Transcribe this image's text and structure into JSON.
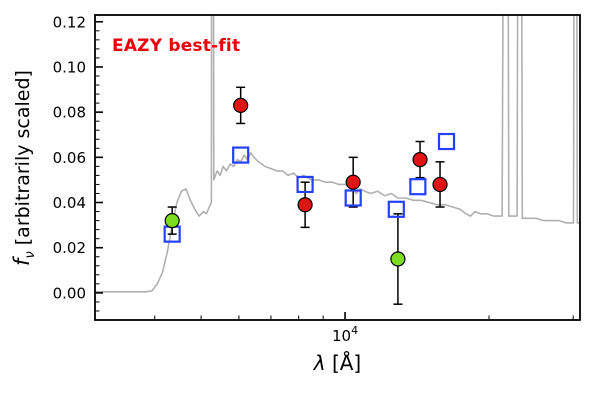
{
  "chart_data": {
    "type": "line+scatter",
    "annotation": "EAZY best-fit",
    "annotation_color": "#e8000b",
    "xlabel_symbol": "λ",
    "xlabel_rest": " [Å]",
    "ylabel_symbol": "f",
    "ylabel_sub": "ν",
    "ylabel_rest": " [arbitrarily scaled]",
    "xscale": "log",
    "xlim": [
      3000,
      31000
    ],
    "ylim": [
      -0.012,
      0.123
    ],
    "y_ticks": [
      0,
      0.02,
      0.04,
      0.06,
      0.08,
      0.1,
      0.12
    ],
    "x_major_ticks": [
      {
        "value": 10000,
        "base": "10",
        "exp": "4"
      }
    ],
    "x_minor_ticks": [
      4000,
      5000,
      6000,
      7000,
      8000,
      9000,
      20000,
      30000
    ],
    "series": [
      {
        "name": "model-spectrum",
        "type": "line",
        "color": "#b0b0b0",
        "points": [
          [
            3000,
            0.0005
          ],
          [
            3850,
            0.0005
          ],
          [
            3950,
            0.001
          ],
          [
            4050,
            0.004
          ],
          [
            4150,
            0.009
          ],
          [
            4250,
            0.018
          ],
          [
            4350,
            0.03
          ],
          [
            4450,
            0.04
          ],
          [
            4550,
            0.045
          ],
          [
            4650,
            0.046
          ],
          [
            4750,
            0.041
          ],
          [
            4850,
            0.037
          ],
          [
            4950,
            0.034
          ],
          [
            5060,
            0.036
          ],
          [
            5130,
            0.035
          ],
          [
            5200,
            0.038
          ],
          [
            5255,
            0.04
          ],
          [
            5268,
            0.3
          ],
          [
            5298,
            0.3
          ],
          [
            5315,
            0.05
          ],
          [
            5400,
            0.054
          ],
          [
            5480,
            0.052
          ],
          [
            5560,
            0.056
          ],
          [
            5650,
            0.054
          ],
          [
            5750,
            0.057
          ],
          [
            5850,
            0.056
          ],
          [
            5950,
            0.059
          ],
          [
            6050,
            0.058
          ],
          [
            6150,
            0.061
          ],
          [
            6250,
            0.059
          ],
          [
            6350,
            0.062
          ],
          [
            6450,
            0.06
          ],
          [
            6600,
            0.058
          ],
          [
            6800,
            0.056
          ],
          [
            7000,
            0.055
          ],
          [
            7200,
            0.054
          ],
          [
            7400,
            0.054
          ],
          [
            7600,
            0.052
          ],
          [
            7800,
            0.053
          ],
          [
            8000,
            0.051
          ],
          [
            8200,
            0.052
          ],
          [
            8500,
            0.05
          ],
          [
            8800,
            0.05
          ],
          [
            9100,
            0.049
          ],
          [
            9400,
            0.049
          ],
          [
            9700,
            0.048
          ],
          [
            10000,
            0.048
          ],
          [
            10300,
            0.047
          ],
          [
            10550,
            0.044
          ],
          [
            10750,
            0.046
          ],
          [
            11000,
            0.045
          ],
          [
            11300,
            0.044
          ],
          [
            11700,
            0.045
          ],
          [
            12100,
            0.043
          ],
          [
            12500,
            0.044
          ],
          [
            12900,
            0.042
          ],
          [
            13400,
            0.042
          ],
          [
            13900,
            0.041
          ],
          [
            14400,
            0.041
          ],
          [
            15000,
            0.04
          ],
          [
            15600,
            0.039
          ],
          [
            16200,
            0.039
          ],
          [
            16800,
            0.038
          ],
          [
            17400,
            0.037
          ],
          [
            17900,
            0.035
          ],
          [
            18300,
            0.034
          ],
          [
            18700,
            0.036
          ],
          [
            19200,
            0.035
          ],
          [
            19800,
            0.035
          ],
          [
            20500,
            0.034
          ],
          [
            21300,
            0.034
          ],
          [
            21560,
            0.3
          ],
          [
            21840,
            0.3
          ],
          [
            22000,
            0.034
          ],
          [
            22900,
            0.034
          ],
          [
            23060,
            0.3
          ],
          [
            23320,
            0.3
          ],
          [
            23480,
            0.033
          ],
          [
            24200,
            0.033
          ],
          [
            25100,
            0.033
          ],
          [
            26000,
            0.032
          ],
          [
            27000,
            0.032
          ],
          [
            28000,
            0.032
          ],
          [
            29000,
            0.031
          ],
          [
            30050,
            0.031
          ],
          [
            30220,
            0.3
          ],
          [
            30430,
            0.3
          ],
          [
            30600,
            0.031
          ],
          [
            31000,
            0.031
          ]
        ]
      },
      {
        "name": "model-photometry",
        "type": "scatter",
        "marker": "square-open",
        "color": "#2440ff",
        "points": [
          [
            4350,
            0.026
          ],
          [
            6050,
            0.061
          ],
          [
            8250,
            0.048
          ],
          [
            10400,
            0.042
          ],
          [
            12800,
            0.037
          ],
          [
            14200,
            0.047
          ],
          [
            16300,
            0.067
          ]
        ]
      },
      {
        "name": "observed-photometry",
        "type": "scatter",
        "marker": "circle-filled",
        "color": "#e01414",
        "points": [
          [
            6050,
            0.083,
            0.008
          ],
          [
            8250,
            0.039,
            0.01
          ],
          [
            10400,
            0.049,
            0.011
          ],
          [
            14350,
            0.059,
            0.008
          ],
          [
            15800,
            0.048,
            0.01
          ]
        ]
      },
      {
        "name": "observed-photometry-nondetection",
        "type": "scatter",
        "marker": "circle-filled",
        "color": "#7ddc1f",
        "points": [
          [
            4350,
            0.032,
            0.006
          ],
          [
            12900,
            0.015,
            0.02
          ]
        ]
      }
    ]
  }
}
